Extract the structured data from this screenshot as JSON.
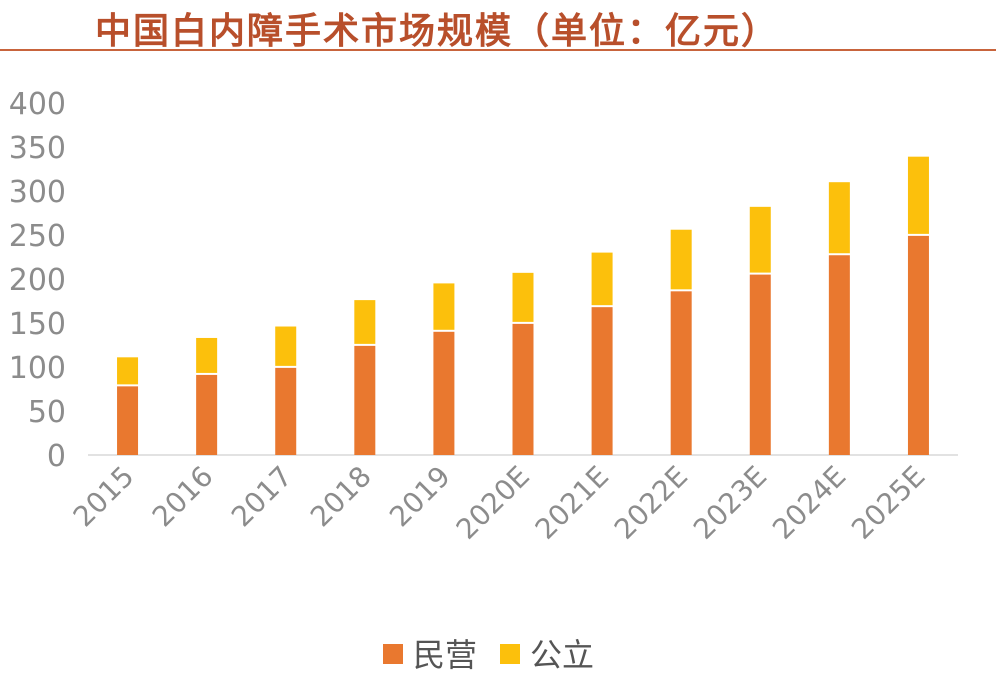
{
  "title": "中国白内障手术市场规模（单位：亿元）",
  "colors": {
    "title": "#b84f2b",
    "series_private": "#e9782f",
    "series_public": "#fcc00c",
    "axis_text": "#8c8c8c"
  },
  "chart_data": {
    "type": "bar",
    "stacked": true,
    "categories": [
      "2015",
      "2016",
      "2017",
      "2018",
      "2019",
      "2020E",
      "2021E",
      "2022E",
      "2023E",
      "2024E",
      "2025E"
    ],
    "series": [
      {
        "name": "民营",
        "color": "#e9782f",
        "values": [
          78,
          91,
          99,
          124,
          140,
          149,
          168,
          186,
          205,
          227,
          249
        ]
      },
      {
        "name": "公立",
        "color": "#fcc00c",
        "values": [
          33,
          42,
          47,
          52,
          55,
          58,
          62,
          70,
          77,
          83,
          90
        ]
      }
    ],
    "ylim": [
      0,
      400
    ],
    "yticks": [
      0,
      50,
      100,
      150,
      200,
      250,
      300,
      350,
      400
    ],
    "grid": false,
    "legend_position": "bottom"
  }
}
